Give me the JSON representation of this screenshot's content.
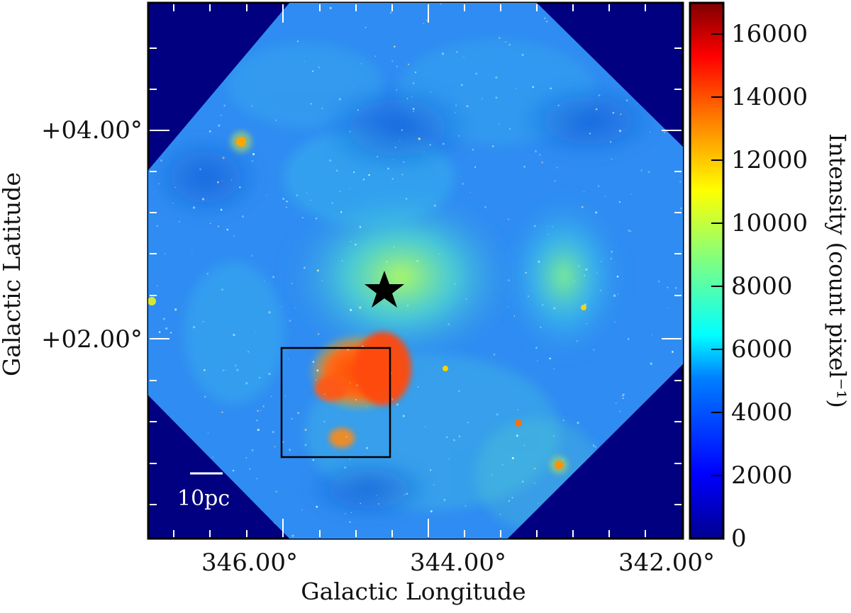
{
  "image": {
    "axes": {
      "x_title": "Galactic Longitude",
      "y_title": "Galactic Latitude",
      "x_ticks": [
        "346.00°",
        "344.00°",
        "342.00°"
      ],
      "y_ticks": [
        "+04.00°",
        "+02.00°"
      ]
    },
    "colorbar": {
      "title": "Intensity (count pixel⁻¹)",
      "ticks": [
        "0",
        "2000",
        "4000",
        "6000",
        "8000",
        "10000",
        "12000",
        "14000",
        "16000"
      ],
      "range": [
        0,
        17000
      ],
      "colormap": [
        "#00008f",
        "#0000ff",
        "#0080ff",
        "#00ffff",
        "#80ff80",
        "#ffff00",
        "#ff8000",
        "#ff0000",
        "#800000"
      ]
    },
    "scale_bar": {
      "label": "10pc"
    },
    "colors": {
      "background": "#000080",
      "field_base": "#2f8cf2",
      "bright_region": "#ff4a10",
      "star_marker": "#000000"
    },
    "marker": "star-icon",
    "highlight_box": "rectangle"
  }
}
